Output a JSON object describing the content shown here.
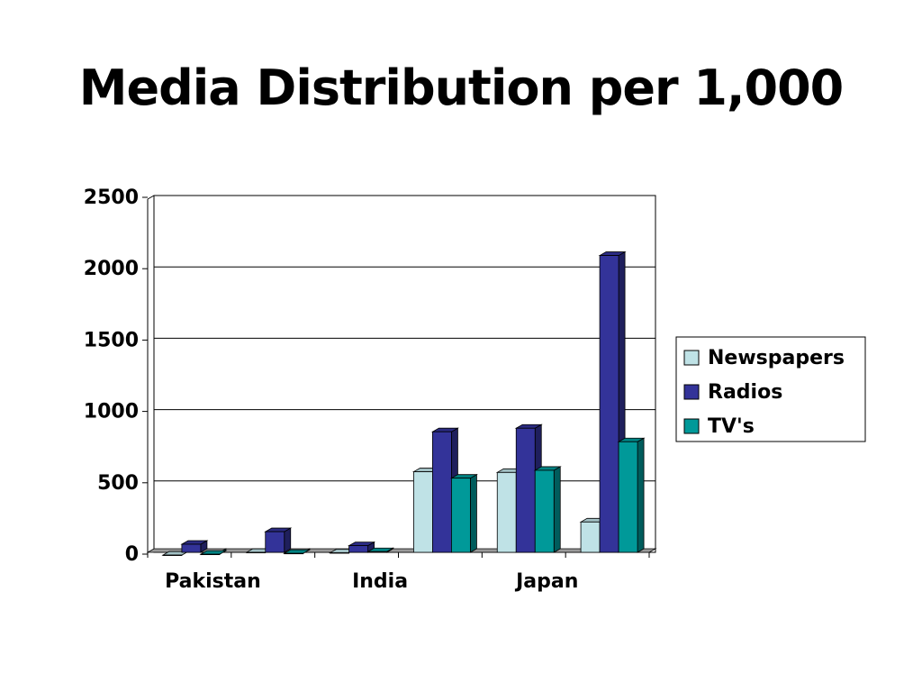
{
  "slide": {
    "title": "Media Distribution per 1,000"
  },
  "chart_data": {
    "type": "bar",
    "title": "",
    "xlabel": "",
    "ylabel": "",
    "ylim": [
      0,
      2500
    ],
    "yticks": [
      "0",
      "500",
      "1000",
      "1500",
      "2000",
      "2500"
    ],
    "categories": [
      "Pakistan",
      "",
      "India",
      "",
      "Japan",
      ""
    ],
    "series": [
      {
        "name": "Newspapers",
        "color": "#BFE2E6",
        "values": [
          6,
          25,
          22,
          590,
          585,
          238
        ]
      },
      {
        "name": "Radios",
        "color": "#333399",
        "values": [
          82,
          170,
          72,
          870,
          895,
          2105
        ]
      },
      {
        "name": "TV's",
        "color": "#009999",
        "values": [
          12,
          18,
          30,
          545,
          600,
          800
        ]
      }
    ],
    "grid": "horizontal",
    "legend": "right",
    "style": "3d-clustered-column"
  }
}
